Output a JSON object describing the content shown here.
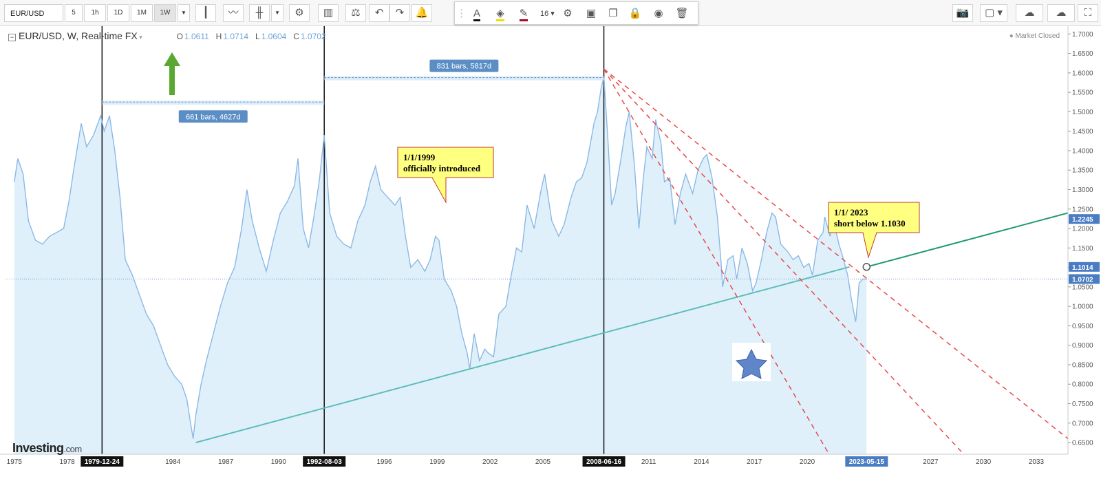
{
  "toolbar": {
    "symbol": "EUR/USD",
    "intervals": [
      "5",
      "1h",
      "1D",
      "1M",
      "1W"
    ],
    "selected_interval": "1W",
    "font_size": "16"
  },
  "legend": {
    "title": "EUR/USD, W, Real-time FX",
    "o_label": "O",
    "o_value": "1.0611",
    "h_label": "H",
    "h_value": "1.0714",
    "l_label": "L",
    "l_value": "1.0604",
    "c_label": "C",
    "c_value": "1.0702"
  },
  "market_status": "Market Closed",
  "logo": {
    "main": "Investing",
    "suffix": ".com"
  },
  "colors": {
    "price_line": "#8ab8e6",
    "area_fill": "#dff0fa",
    "support_line": "#5bbcb8",
    "forecast_line": "#1f9a74",
    "resistance_lines": "#e8484a",
    "callout_fill": "#ffff80",
    "callout_border": "#c0392b",
    "range_box": "#5b8ec5",
    "arrow": "#5aa832"
  },
  "chart_data": {
    "type": "line",
    "x_axis": {
      "start_year": 1974.5,
      "end_year": 2034.8,
      "labels": [
        {
          "year": 1975,
          "label": "1975"
        },
        {
          "year": 1978,
          "label": "1978"
        },
        {
          "year": 1984,
          "label": "1984"
        },
        {
          "year": 1987,
          "label": "1987"
        },
        {
          "year": 1990,
          "label": "1990"
        },
        {
          "year": 1996,
          "label": "1996"
        },
        {
          "year": 1999,
          "label": "1999"
        },
        {
          "year": 2002,
          "label": "2002"
        },
        {
          "year": 2005,
          "label": "2005"
        },
        {
          "year": 2011,
          "label": "2011"
        },
        {
          "year": 2014,
          "label": "2014"
        },
        {
          "year": 2017,
          "label": "2017"
        },
        {
          "year": 2020,
          "label": "2020"
        },
        {
          "year": 2027,
          "label": "2027"
        },
        {
          "year": 2030,
          "label": "2030"
        },
        {
          "year": 2033,
          "label": "2033"
        }
      ],
      "date_markers": [
        {
          "year": 1979.98,
          "label": "1979-12-24"
        },
        {
          "year": 1992.59,
          "label": "1992-08-03"
        },
        {
          "year": 2008.46,
          "label": "2008-06-16"
        },
        {
          "year": 2023.37,
          "label": "2023-05-15"
        }
      ]
    },
    "y_axis": {
      "min": 0.62,
      "max": 1.72,
      "ticks": [
        0.65,
        0.7,
        0.75,
        0.8,
        0.85,
        0.9,
        0.95,
        1.0,
        1.05,
        1.1,
        1.15,
        1.2,
        1.25,
        1.3,
        1.35,
        1.4,
        1.45,
        1.5,
        1.55,
        1.6,
        1.65,
        1.7
      ],
      "tick_labels": [
        "0.6500",
        "0.7000",
        "0.7500",
        "0.8000",
        "0.8500",
        "0.9000",
        "0.9500",
        "1.0000",
        "1.0500",
        "1.1000",
        "1.1500",
        "1.2000",
        "1.2500",
        "1.3000",
        "1.3500",
        "1.4000",
        "1.4500",
        "1.5000",
        "1.5500",
        "1.6000",
        "1.6500",
        "1.7000"
      ],
      "price_tags": [
        {
          "value": 1.2245,
          "label": "1.2245"
        },
        {
          "value": 1.1014,
          "label": "1.1014"
        },
        {
          "value": 1.0702,
          "label": "1.0702"
        }
      ]
    },
    "series": [
      {
        "name": "EUR/USD",
        "points": [
          [
            1975.0,
            1.32
          ],
          [
            1975.2,
            1.38
          ],
          [
            1975.5,
            1.34
          ],
          [
            1975.8,
            1.22
          ],
          [
            1976.2,
            1.17
          ],
          [
            1976.6,
            1.16
          ],
          [
            1977.0,
            1.18
          ],
          [
            1977.4,
            1.19
          ],
          [
            1977.8,
            1.2
          ],
          [
            1978.1,
            1.27
          ],
          [
            1978.4,
            1.36
          ],
          [
            1978.8,
            1.47
          ],
          [
            1979.1,
            1.41
          ],
          [
            1979.5,
            1.44
          ],
          [
            1979.9,
            1.49
          ],
          [
            1980.1,
            1.45
          ],
          [
            1980.4,
            1.49
          ],
          [
            1980.7,
            1.4
          ],
          [
            1981.0,
            1.28
          ],
          [
            1981.3,
            1.12
          ],
          [
            1981.7,
            1.08
          ],
          [
            1982.1,
            1.03
          ],
          [
            1982.5,
            0.98
          ],
          [
            1982.9,
            0.95
          ],
          [
            1983.3,
            0.9
          ],
          [
            1983.7,
            0.85
          ],
          [
            1984.1,
            0.82
          ],
          [
            1984.5,
            0.8
          ],
          [
            1984.8,
            0.76
          ],
          [
            1985.0,
            0.7
          ],
          [
            1985.15,
            0.66
          ],
          [
            1985.3,
            0.72
          ],
          [
            1985.6,
            0.8
          ],
          [
            1985.9,
            0.86
          ],
          [
            1986.3,
            0.93
          ],
          [
            1986.7,
            1.0
          ],
          [
            1987.1,
            1.06
          ],
          [
            1987.5,
            1.1
          ],
          [
            1987.9,
            1.2
          ],
          [
            1988.2,
            1.3
          ],
          [
            1988.5,
            1.22
          ],
          [
            1988.9,
            1.15
          ],
          [
            1989.3,
            1.09
          ],
          [
            1989.7,
            1.17
          ],
          [
            1990.1,
            1.24
          ],
          [
            1990.5,
            1.27
          ],
          [
            1990.9,
            1.31
          ],
          [
            1991.1,
            1.38
          ],
          [
            1991.4,
            1.2
          ],
          [
            1991.7,
            1.15
          ],
          [
            1992.0,
            1.23
          ],
          [
            1992.3,
            1.32
          ],
          [
            1992.59,
            1.44
          ],
          [
            1992.9,
            1.24
          ],
          [
            1993.3,
            1.18
          ],
          [
            1993.7,
            1.16
          ],
          [
            1994.1,
            1.15
          ],
          [
            1994.5,
            1.22
          ],
          [
            1994.9,
            1.26
          ],
          [
            1995.2,
            1.32
          ],
          [
            1995.5,
            1.36
          ],
          [
            1995.8,
            1.3
          ],
          [
            1996.2,
            1.28
          ],
          [
            1996.6,
            1.26
          ],
          [
            1996.9,
            1.28
          ],
          [
            1997.2,
            1.18
          ],
          [
            1997.5,
            1.1
          ],
          [
            1997.9,
            1.12
          ],
          [
            1998.3,
            1.09
          ],
          [
            1998.6,
            1.12
          ],
          [
            1998.9,
            1.18
          ],
          [
            1999.1,
            1.17
          ],
          [
            1999.4,
            1.07
          ],
          [
            1999.8,
            1.04
          ],
          [
            2000.1,
            1.0
          ],
          [
            2000.4,
            0.93
          ],
          [
            2000.7,
            0.88
          ],
          [
            2000.85,
            0.84
          ],
          [
            2001.1,
            0.93
          ],
          [
            2001.4,
            0.86
          ],
          [
            2001.7,
            0.89
          ],
          [
            2001.9,
            0.88
          ],
          [
            2002.2,
            0.87
          ],
          [
            2002.5,
            0.98
          ],
          [
            2002.9,
            1.0
          ],
          [
            2003.2,
            1.08
          ],
          [
            2003.5,
            1.15
          ],
          [
            2003.8,
            1.14
          ],
          [
            2004.1,
            1.26
          ],
          [
            2004.5,
            1.2
          ],
          [
            2004.9,
            1.3
          ],
          [
            2005.1,
            1.34
          ],
          [
            2005.5,
            1.22
          ],
          [
            2005.9,
            1.18
          ],
          [
            2006.2,
            1.21
          ],
          [
            2006.6,
            1.28
          ],
          [
            2006.9,
            1.32
          ],
          [
            2007.2,
            1.33
          ],
          [
            2007.5,
            1.37
          ],
          [
            2007.9,
            1.47
          ],
          [
            2008.1,
            1.5
          ],
          [
            2008.3,
            1.56
          ],
          [
            2008.46,
            1.59
          ],
          [
            2008.7,
            1.42
          ],
          [
            2008.9,
            1.26
          ],
          [
            2009.1,
            1.29
          ],
          [
            2009.4,
            1.37
          ],
          [
            2009.7,
            1.46
          ],
          [
            2009.9,
            1.5
          ],
          [
            2010.2,
            1.36
          ],
          [
            2010.45,
            1.2
          ],
          [
            2010.7,
            1.33
          ],
          [
            2010.9,
            1.41
          ],
          [
            2011.2,
            1.38
          ],
          [
            2011.4,
            1.48
          ],
          [
            2011.7,
            1.42
          ],
          [
            2011.9,
            1.32
          ],
          [
            2012.2,
            1.33
          ],
          [
            2012.5,
            1.21
          ],
          [
            2012.8,
            1.29
          ],
          [
            2013.1,
            1.34
          ],
          [
            2013.5,
            1.29
          ],
          [
            2013.8,
            1.35
          ],
          [
            2014.1,
            1.38
          ],
          [
            2014.3,
            1.39
          ],
          [
            2014.6,
            1.33
          ],
          [
            2014.9,
            1.23
          ],
          [
            2015.1,
            1.12
          ],
          [
            2015.2,
            1.05
          ],
          [
            2015.5,
            1.12
          ],
          [
            2015.8,
            1.13
          ],
          [
            2016.0,
            1.07
          ],
          [
            2016.3,
            1.15
          ],
          [
            2016.6,
            1.11
          ],
          [
            2016.9,
            1.04
          ],
          [
            2017.1,
            1.06
          ],
          [
            2017.4,
            1.12
          ],
          [
            2017.7,
            1.19
          ],
          [
            2018.0,
            1.24
          ],
          [
            2018.2,
            1.23
          ],
          [
            2018.5,
            1.16
          ],
          [
            2018.9,
            1.14
          ],
          [
            2019.2,
            1.12
          ],
          [
            2019.5,
            1.13
          ],
          [
            2019.8,
            1.1
          ],
          [
            2020.1,
            1.11
          ],
          [
            2020.3,
            1.08
          ],
          [
            2020.6,
            1.17
          ],
          [
            2020.9,
            1.19
          ],
          [
            2021.0,
            1.23
          ],
          [
            2021.3,
            1.18
          ],
          [
            2021.5,
            1.22
          ],
          [
            2021.8,
            1.16
          ],
          [
            2022.0,
            1.13
          ],
          [
            2022.3,
            1.08
          ],
          [
            2022.5,
            1.02
          ],
          [
            2022.75,
            0.96
          ],
          [
            2022.95,
            1.06
          ],
          [
            2023.15,
            1.07
          ],
          [
            2023.37,
            1.07
          ]
        ]
      }
    ],
    "trendlines": [
      {
        "name": "support",
        "from": [
          1985.3,
          0.65
        ],
        "to": [
          2022.4,
          1.1014
        ]
      },
      {
        "name": "forecast",
        "from": [
          2023.37,
          1.1014
        ],
        "to": [
          2034.8,
          1.24
        ]
      },
      {
        "name": "resistance-1",
        "from": [
          2008.46,
          1.61
        ],
        "to": [
          2021.5,
          0.6
        ]
      },
      {
        "name": "resistance-2",
        "from": [
          2008.46,
          1.61
        ],
        "to": [
          2029.3,
          0.6
        ]
      },
      {
        "name": "resistance-3",
        "from": [
          2008.46,
          1.61
        ],
        "to": [
          2034.8,
          0.66
        ]
      }
    ],
    "reference_line": 1.0702,
    "range_measures": [
      {
        "from_year": 1979.98,
        "to_year": 1992.59,
        "value": 1.525,
        "label": "661 bars, 4627d"
      },
      {
        "from_year": 1992.59,
        "to_year": 2008.46,
        "value": 1.588,
        "label": "831 bars, 5817d"
      }
    ],
    "annotations": [
      {
        "name": "euro-introduced",
        "line1": "1/1/1999",
        "line2": "officially introduced"
      },
      {
        "name": "short-signal",
        "line1": "1/1/ 2023",
        "line2": "short below 1.1030"
      }
    ],
    "grid": false,
    "legend_position": "top-left"
  }
}
